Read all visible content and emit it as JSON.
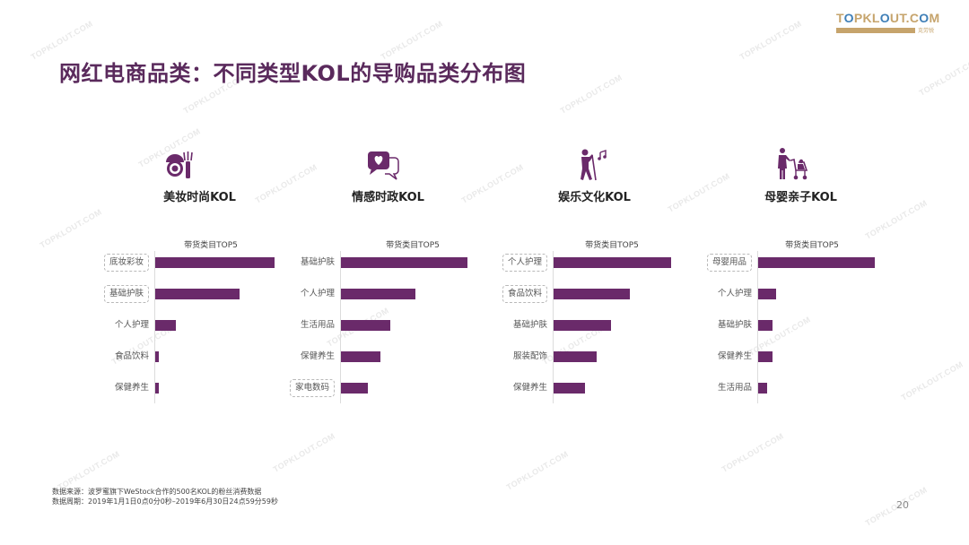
{
  "logo": {
    "text": "TOPKLOUT.COM",
    "subtext": "克劳锐"
  },
  "title": "网红电商品类：不同类型KOL的导购品类分布图",
  "watermark_text": "TOPKLOUT.COM",
  "colors": {
    "bar": "#6a2a6a",
    "title": "#5a2a5c",
    "logo_gold": "#c6a46c",
    "logo_blue": "#3f7fb7"
  },
  "panels": [
    {
      "name": "美妆时尚KOL",
      "icon": "makeup-icon",
      "caption": "带货类目TOP5",
      "categories": [
        "底妆彩妆",
        "基础护肤",
        "个人护理",
        "食品饮料",
        "保健养生"
      ],
      "highlighted": [
        true,
        true,
        false,
        false,
        false
      ],
      "values": [
        100,
        71,
        17,
        3,
        3
      ]
    },
    {
      "name": "情感时政KOL",
      "icon": "chat-heart-icon",
      "caption": "带货类目TOP5",
      "categories": [
        "基础护肤",
        "个人护理",
        "生活用品",
        "保健养生",
        "家电数码"
      ],
      "highlighted": [
        false,
        false,
        false,
        false,
        true
      ],
      "values": [
        100,
        59,
        39,
        31,
        21
      ]
    },
    {
      "name": "娱乐文化KOL",
      "icon": "singer-icon",
      "caption": "带货类目TOP5",
      "categories": [
        "个人护理",
        "食品饮料",
        "基础护肤",
        "服装配饰",
        "保健养生"
      ],
      "highlighted": [
        true,
        true,
        false,
        false,
        false
      ],
      "values": [
        100,
        65,
        49,
        37,
        27
      ]
    },
    {
      "name": "母婴亲子KOL",
      "icon": "mother-stroller-icon",
      "caption": "带货类目TOP5",
      "categories": [
        "母婴用品",
        "个人护理",
        "基础护肤",
        "保健养生",
        "生活用品"
      ],
      "highlighted": [
        true,
        false,
        false,
        false,
        false
      ],
      "values": [
        100,
        15,
        12,
        12,
        8
      ]
    }
  ],
  "chart_data": [
    {
      "type": "bar",
      "orientation": "horizontal",
      "title": "美妆时尚KOL — 带货类目TOP5",
      "categories": [
        "底妆彩妆",
        "基础护肤",
        "个人护理",
        "食品饮料",
        "保健养生"
      ],
      "values": [
        100,
        71,
        17,
        3,
        3
      ],
      "xlabel": "",
      "ylabel": "",
      "note": "relative bar lengths (no axis values shown)"
    },
    {
      "type": "bar",
      "orientation": "horizontal",
      "title": "情感时政KOL — 带货类目TOP5",
      "categories": [
        "基础护肤",
        "个人护理",
        "生活用品",
        "保健养生",
        "家电数码"
      ],
      "values": [
        100,
        59,
        39,
        31,
        21
      ],
      "xlabel": "",
      "ylabel": "",
      "note": "relative bar lengths (no axis values shown)"
    },
    {
      "type": "bar",
      "orientation": "horizontal",
      "title": "娱乐文化KOL — 带货类目TOP5",
      "categories": [
        "个人护理",
        "食品饮料",
        "基础护肤",
        "服装配饰",
        "保健养生"
      ],
      "values": [
        100,
        65,
        49,
        37,
        27
      ],
      "xlabel": "",
      "ylabel": "",
      "note": "relative bar lengths (no axis values shown)"
    },
    {
      "type": "bar",
      "orientation": "horizontal",
      "title": "母婴亲子KOL — 带货类目TOP5",
      "categories": [
        "母婴用品",
        "个人护理",
        "基础护肤",
        "保健养生",
        "生活用品"
      ],
      "values": [
        100,
        15,
        12,
        12,
        8
      ],
      "xlabel": "",
      "ylabel": "",
      "note": "relative bar lengths (no axis values shown)"
    }
  ],
  "footnote": {
    "source": "数据来源：波罗蜜旗下WeStock合作的500名KOL的粉丝消费数据",
    "period": "数据周期：2019年1月1日0点0分0秒–2019年6月30日24点59分59秒"
  },
  "page_number": "20"
}
